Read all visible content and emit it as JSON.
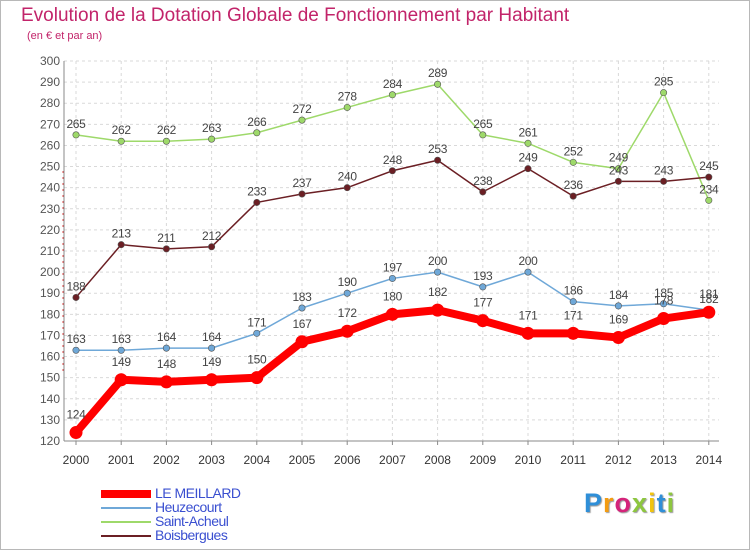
{
  "title": "Evolution de la Dotation Globale de Fonctionnement par Habitant",
  "subtitle": "(en € et par an)",
  "brand": {
    "letters": [
      "P",
      "r",
      "o",
      "x",
      "i",
      "t",
      "i"
    ],
    "colors": [
      "#2f8fd8",
      "#f39c12",
      "#d4247a",
      "#8dc63f",
      "#f1c40f",
      "#2f8fd8",
      "#8dc63f"
    ]
  },
  "chart_data": {
    "type": "line",
    "title": "Evolution de la Dotation Globale de Fonctionnement par Habitant",
    "subtitle": "(en € et par an)",
    "x": [
      "2000",
      "2001",
      "2002",
      "2003",
      "2004",
      "2005",
      "2006",
      "2007",
      "2008",
      "2009",
      "2010",
      "2011",
      "2012",
      "2013",
      "2014"
    ],
    "ylim": [
      120,
      300
    ],
    "yticks": [
      120,
      130,
      140,
      150,
      160,
      170,
      180,
      190,
      200,
      210,
      220,
      230,
      240,
      250,
      260,
      270,
      280,
      290,
      300
    ],
    "grid": true,
    "legend_position": "bottom-left",
    "series": [
      {
        "name": "LE MEILLARD",
        "color": "#ff0000",
        "text_color": "#3a4fd0",
        "values": [
          124,
          149,
          148,
          149,
          150,
          167,
          172,
          180,
          182,
          177,
          171,
          171,
          169,
          178,
          181
        ]
      },
      {
        "name": "Heuzecourt",
        "color": "#6fa8d8",
        "text_color": "#3a4fd0",
        "values": [
          163,
          163,
          164,
          164,
          171,
          183,
          190,
          197,
          200,
          193,
          200,
          186,
          184,
          185,
          182
        ]
      },
      {
        "name": "Saint-Acheul",
        "color": "#9ed96a",
        "text_color": "#3a4fd0",
        "values": [
          265,
          262,
          262,
          263,
          266,
          272,
          278,
          284,
          289,
          265,
          261,
          252,
          249,
          285,
          234
        ]
      },
      {
        "name": "Boisbergues",
        "color": "#6b1f24",
        "text_color": "#3a4fd0",
        "values": [
          188,
          213,
          211,
          212,
          233,
          237,
          240,
          248,
          253,
          238,
          249,
          236,
          243,
          243,
          245
        ]
      }
    ]
  }
}
